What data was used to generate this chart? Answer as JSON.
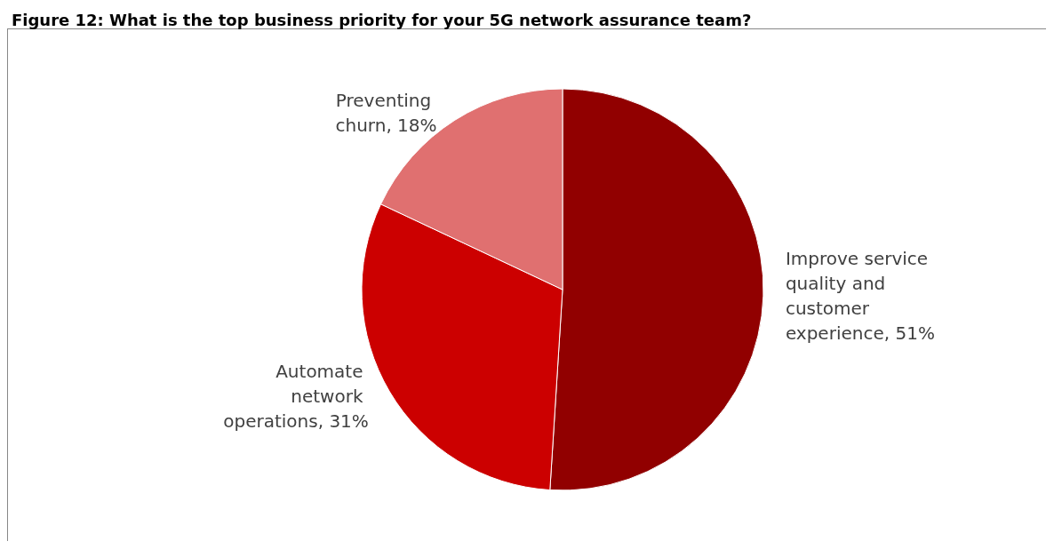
{
  "chart_data": {
    "type": "pie",
    "title": "Figure 12: What is the top business priority for your 5G network assurance team?",
    "categories": [
      "Improve service quality and customer experience",
      "Automate network operations",
      "Preventing churn"
    ],
    "values": [
      51,
      31,
      18
    ],
    "colors": [
      "#910000",
      "#cc0000",
      "#e07070"
    ],
    "value_labels": [
      "51%",
      "31%",
      "18%"
    ],
    "legend": false
  }
}
